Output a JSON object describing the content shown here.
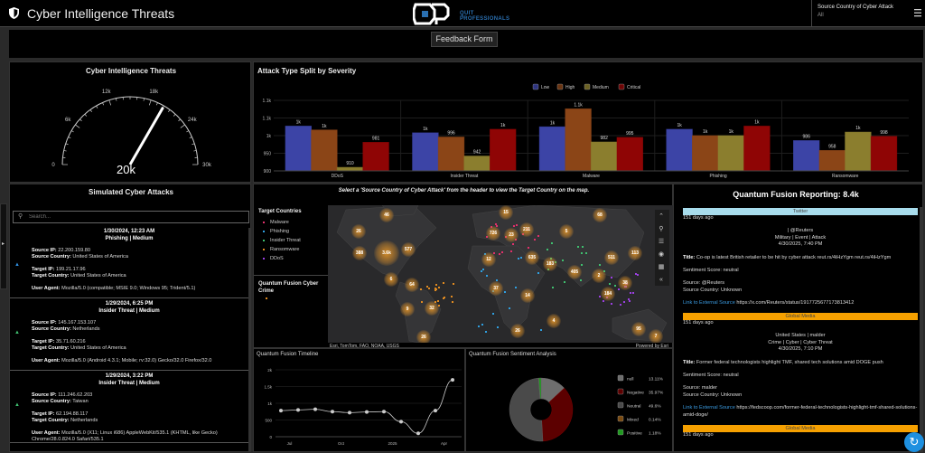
{
  "header": {
    "title": "Cyber Intelligence Threats",
    "logo_text": "QUIT PROFESSIONALS",
    "source_label": "Source Country of Cyber Attack",
    "source_value": "All"
  },
  "feedback": {
    "label": "Feedback Form"
  },
  "gauge": {
    "title": "Cyber Intelligence Threats",
    "value": 20000,
    "value_label": "20k",
    "min": 0,
    "max": 30000,
    "ticks": [
      "0",
      "6k",
      "12k",
      "18k",
      "24k",
      "30k"
    ]
  },
  "chart_data": [
    {
      "type": "bar",
      "title": "Attack Type Split by Severity",
      "categories": [
        "DDoS",
        "Insider Threat",
        "Malware",
        "Phishing",
        "Ransomware"
      ],
      "series": [
        {
          "name": "Low",
          "color": "#2e3480",
          "values": [
            1027,
            1008,
            1025,
            1018,
            986
          ],
          "labels": [
            "1k",
            "1k",
            "1k",
            "1k",
            "986"
          ]
        },
        {
          "name": "High",
          "color": "#6b3512",
          "values": [
            1016,
            996,
            1076,
            1000,
            958
          ],
          "labels": [
            "1k",
            "996",
            "1.1k",
            "1k",
            "958"
          ]
        },
        {
          "name": "Medium",
          "color": "#6b6123",
          "values": [
            910,
            942,
            982,
            1000,
            1010
          ],
          "labels": [
            "910",
            "942",
            "982",
            "1k",
            "1k"
          ]
        },
        {
          "name": "Critical",
          "color": "#6e0404",
          "values": [
            981,
            1018,
            995,
            1027,
            998
          ],
          "labels": [
            "981",
            "1k",
            "995",
            "1k",
            "998"
          ]
        }
      ],
      "ylim": [
        900,
        1100
      ],
      "yticks": [
        900,
        950,
        1000,
        1050,
        1100
      ],
      "ytick_labels": [
        "900",
        "950",
        "1k",
        "1.1k",
        "1.1k"
      ],
      "legend": "top-center"
    },
    {
      "type": "line",
      "title": "Quantum Fusion Timeline",
      "x": [
        0,
        1,
        2,
        3,
        4,
        5,
        6,
        7,
        8,
        9,
        10
      ],
      "values": [
        780,
        800,
        820,
        750,
        720,
        740,
        750,
        450,
        100,
        780,
        1700
      ],
      "ylim": [
        0,
        2000
      ],
      "yticks": [
        0,
        500,
        1000,
        1500,
        2000
      ],
      "ytick_labels": [
        "0",
        "500",
        "1k",
        "1.5k",
        "2k"
      ],
      "xticks": [
        0.5,
        3.5,
        6.5,
        9.5
      ],
      "xtick_labels": [
        "Jul",
        "Oct",
        "2025",
        "Apr"
      ]
    },
    {
      "type": "pie",
      "title": "Quantum Fusion Sentiment Analysis",
      "slices": [
        {
          "name": "null",
          "value": 13.11,
          "label": "13.11%",
          "color": "#6e6e6e"
        },
        {
          "name": "Negative",
          "value": 35.97,
          "label": "35.97%",
          "color": "#5c0000"
        },
        {
          "name": "Neutral",
          "value": 49.6,
          "label": "49.6%",
          "color": "#4a4a4a"
        },
        {
          "name": "Mixed",
          "value": 0.14,
          "label": "0.14%",
          "color": "#7a4a10"
        },
        {
          "name": "Positive",
          "value": 1.18,
          "label": "1.18%",
          "color": "#1f9a1f"
        }
      ]
    }
  ],
  "attacks": {
    "title": "Simulated Cyber Attacks",
    "search_placeholder": "Search...",
    "labels": {
      "src_ip": "Source IP:",
      "src_country": "Source Country:",
      "tgt_ip": "Target IP:",
      "tgt_country": "Target Country:",
      "ua": "User Agent:"
    },
    "items": [
      {
        "date": "1/30/2024, 12:23 AM",
        "type": "Phishing | Medium",
        "src_ip": "22.200.159.80",
        "src_country": "United States of America",
        "tgt_ip": "199.21.17.96",
        "tgt_country": "United States of America",
        "ua": "Mozilla/5.0 (compatible; MSIE 9.0; Windows 95; Trident/5.1)",
        "color": "#2f8fe0"
      },
      {
        "date": "1/29/2024, 6:25 PM",
        "type": "Insider Threat | Medium",
        "src_ip": "145.167.153.107",
        "src_country": "Netherlands",
        "tgt_ip": "35.71.60.216",
        "tgt_country": "United States of America",
        "ua": "Mozilla/5.0 (Android 4.3.1; Mobile; rv:32.0) Gecko/32.0 Firefox/32.0",
        "color": "#3fbf6f"
      },
      {
        "date": "1/29/2024, 3:22 PM",
        "type": "Insider Threat | Medium",
        "src_ip": "111.246.62.203",
        "src_country": "Taiwan",
        "tgt_ip": "62.194.88.117",
        "tgt_country": "Netherlands",
        "ua": "Mozilla/5.0 (X11; Linux i686) AppleWebKit/535.1 (KHTML, like Gecko) Chrome/28.0.824.0 Safari/535.1",
        "color": "#3fbf6f"
      }
    ]
  },
  "map": {
    "instruction": "Select a 'Source Country of Cyber Attack' from the header to view the Target Country on the map.",
    "legend_title": "Target Countries",
    "legend": [
      {
        "label": "Malware",
        "color": "#e0306a"
      },
      {
        "label": "Phishing",
        "color": "#2f9fe0"
      },
      {
        "label": "Insider Threat",
        "color": "#3fbf6f"
      },
      {
        "label": "Ransomware",
        "color": "#e08a20"
      },
      {
        "label": "DDoS",
        "color": "#9a40e0"
      }
    ],
    "layer2_title": "Quantum Fusion Cyber Crime",
    "attribution": "Esri, TomTom, FAO, NOAA, USGS",
    "powered": "Powered by Esri",
    "clusters": [
      "46",
      "26",
      "388",
      "3.6k",
      "577",
      "6",
      "64",
      "9",
      "32",
      "26",
      "15",
      "726",
      "23",
      "211",
      "68",
      "5",
      "12",
      "635",
      "183",
      "405",
      "511",
      "113",
      "2",
      "38",
      "37",
      "184",
      "14",
      "4",
      "26",
      "95",
      "7"
    ]
  },
  "reporting": {
    "title": "Quantum Fusion Reporting: 8.4k",
    "title_label": "Title:",
    "link_label": "Link to External Source",
    "items": [
      {
        "source_type": "Twitter",
        "bar_color": "#a8dcec",
        "age": "151 days ago",
        "who": "| @Reuters",
        "tags": "Military | Event | Attack",
        "date": "4/30/2025, 7:40 PM",
        "title": "Co-op is latest British retailer to be hit by cyber attack reut.rs/4iHzYgm reut.rs/4iHzYgm",
        "sentiment": "Sentiment Score: neutral",
        "source": "Source: @Reuters",
        "country": "Source Country: Unknown",
        "url": "https://x.com/Reuters/status/1917725677173813412"
      },
      {
        "source_type": "Global Media",
        "bar_color": "#f5a000",
        "age": "151 days ago",
        "who": "United States | malder",
        "tags": "Crime | Cyber | Cyber Threat",
        "date": "4/30/2025, 7:10 PM",
        "title": "Former federal technologists highlight TMF, shared tech solutions amid DOGE push",
        "sentiment": "Sentiment Score: neutral",
        "source": "Source: malder",
        "country": "Source Country: Unknown",
        "url": "https://fedscoop.com/former-federal-technologists-highlight-tmf-shared-solutions-amid-doge/"
      },
      {
        "source_type": "Global Media",
        "bar_color": "#f5a000",
        "age": "151 days ago"
      }
    ]
  }
}
